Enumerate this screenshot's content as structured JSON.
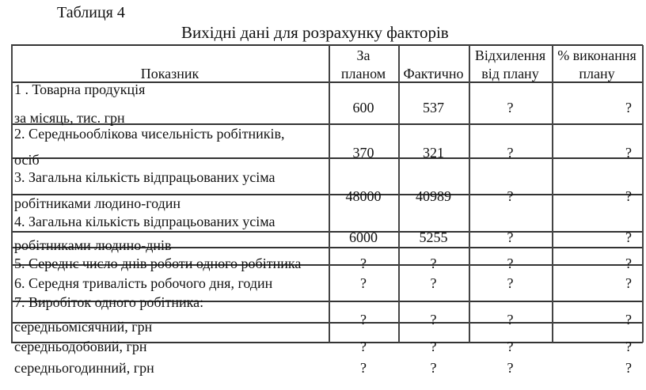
{
  "caption": "Таблиця 4",
  "title": "Вихідні дані для розрахунку факторів",
  "headers": {
    "indicator": "Показник",
    "plan_1": "За",
    "plan_2": "планом",
    "actual": "Фактично",
    "deviation_1": "Відхилення",
    "deviation_2": "від плану",
    "percent_1": "% виконання",
    "percent_2": "плану"
  },
  "rows": [
    {
      "label_1": "1 . Товарна продукція",
      "label_2": "за місяць, тис. грн",
      "plan": "600",
      "actual": "537",
      "deviation": "?",
      "percent": "?"
    },
    {
      "label_1": "2. Середньооблікова чисельність робітників,",
      "label_2": "осіб",
      "plan": "370",
      "actual": "321",
      "deviation": "?",
      "percent": "?"
    },
    {
      "label_1": "3. Загальна кількість відпрацьованих усіма",
      "label_2": "робітниками людино-годин",
      "plan": "48000",
      "actual": "40989",
      "deviation": "?",
      "percent": "?"
    },
    {
      "label_1": "4. Загальна кількість відпрацьованих усіма",
      "label_2": "робітниками людино-днів",
      "plan": "6000",
      "actual": "5255",
      "deviation": "?",
      "percent": "?"
    },
    {
      "label_1": "5. Середнє число днів роботи одного робітника",
      "plan": "?",
      "actual": "?",
      "deviation": "?",
      "percent": "?"
    },
    {
      "label_1": "6. Середня тривалість робочого дня, годин",
      "plan": "?",
      "actual": "?",
      "deviation": "?",
      "percent": "?"
    },
    {
      "label_1": "7. Виробіток одного робітника:",
      "label_2": "середньомісячний, грн",
      "plan": "?",
      "actual": "?",
      "deviation": "?",
      "percent": "?"
    },
    {
      "label_1": "середньодобовий, грн",
      "plan": "?",
      "actual": "?",
      "deviation": "?",
      "percent": "?"
    },
    {
      "label_1": "середньогодинний, грн",
      "plan": "?",
      "actual": "?",
      "deviation": "?",
      "percent": "?"
    }
  ]
}
